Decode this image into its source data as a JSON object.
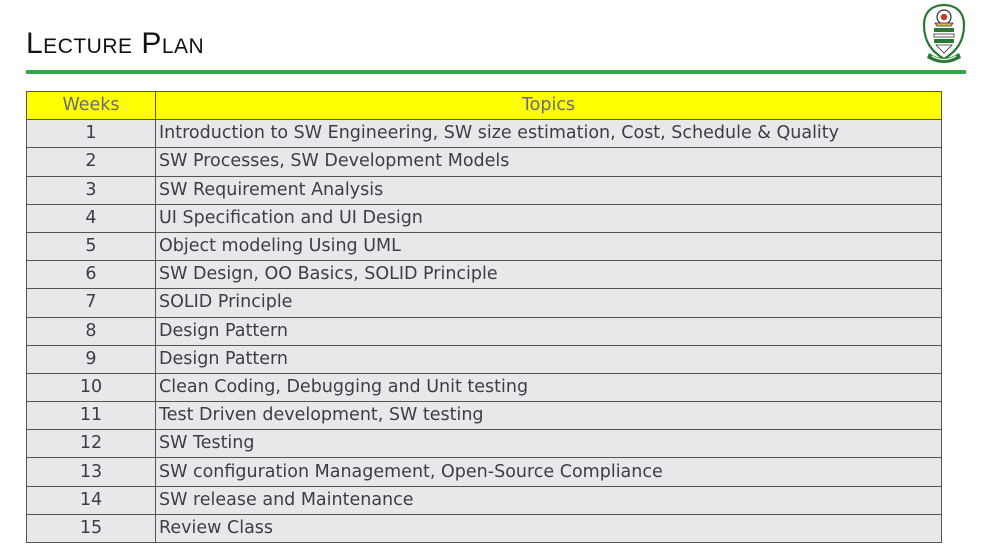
{
  "header": {
    "title": "Lecture Plan",
    "accent_color": "#33a645"
  },
  "logo": {
    "icon": "university-crest-icon"
  },
  "table": {
    "header_color": "#fffe00",
    "row_color": "#e8e8ea",
    "columns": [
      "Weeks",
      "Topics"
    ],
    "rows": [
      {
        "week": "1",
        "topic": "Introduction to SW Engineering, SW size estimation, Cost, Schedule & Quality"
      },
      {
        "week": "2",
        "topic": "SW Processes, SW Development Models"
      },
      {
        "week": "3",
        "topic": "SW Requirement Analysis"
      },
      {
        "week": "4",
        "topic": "UI Specification and UI Design"
      },
      {
        "week": "5",
        "topic": "Object modeling Using UML"
      },
      {
        "week": "6",
        "topic": "SW Design, OO Basics, SOLID Principle"
      },
      {
        "week": "7",
        "topic": "SOLID Principle"
      },
      {
        "week": "8",
        "topic": "Design Pattern"
      },
      {
        "week": "9",
        "topic": "Design Pattern"
      },
      {
        "week": "10",
        "topic": "Clean Coding, Debugging and Unit testing"
      },
      {
        "week": "11",
        "topic": "Test Driven development, SW testing"
      },
      {
        "week": "12",
        "topic": "SW Testing"
      },
      {
        "week": "13",
        "topic": "SW configuration Management, Open-Source Compliance"
      },
      {
        "week": "14",
        "topic": "SW release and Maintenance"
      },
      {
        "week": "15",
        "topic": "Review Class"
      }
    ]
  }
}
